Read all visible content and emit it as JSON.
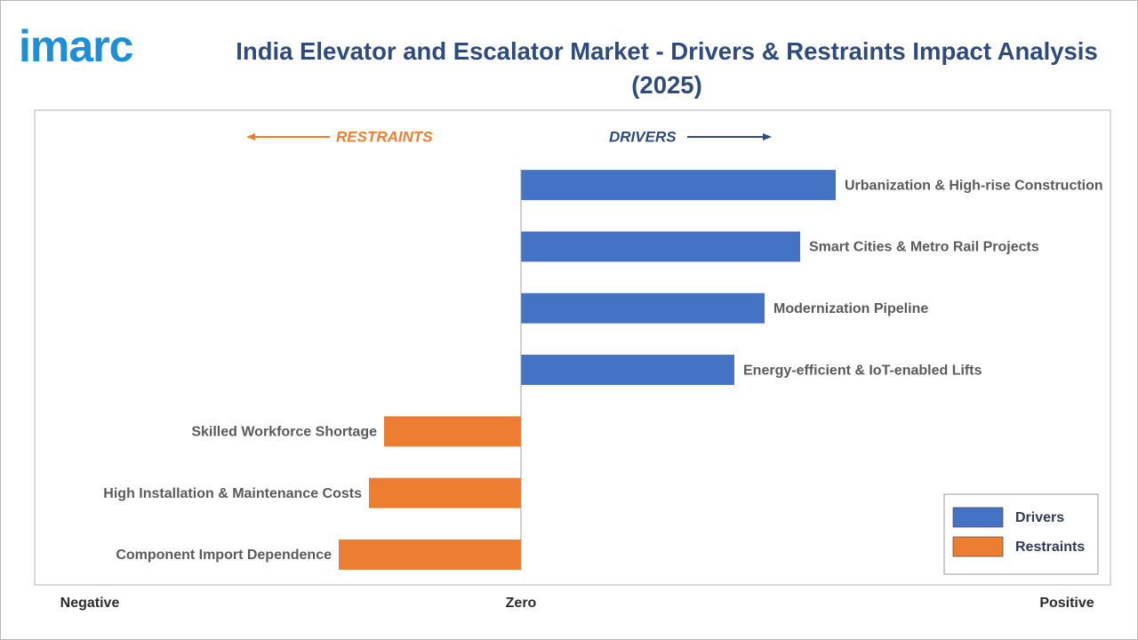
{
  "chart_data": {
    "type": "diverging_bar",
    "logo": "imarc",
    "title": "India Elevator and Escalator Market - Drivers & Restraints Impact Analysis (2025)",
    "restraints_label": "RESTRAINTS",
    "drivers_label": "DRIVERS",
    "categories": [
      "Urbanization & High-rise Construction",
      "Smart Cities & Metro Rail Projects",
      "Modernization Pipeline",
      "Energy-efficient & IoT-enabled Lifts",
      "Skilled Workforce Shortage",
      "High Installation & Maintenance Costs",
      "Component Import Dependence"
    ],
    "series": [
      {
        "name": "Drivers",
        "color": "#4472c4",
        "values": [
          3.54,
          3.14,
          2.74,
          2.4,
          null,
          null,
          null
        ]
      },
      {
        "name": "Restraints",
        "color": "#ed7d31",
        "values": [
          null,
          null,
          null,
          null,
          -1.54,
          -1.71,
          -2.05
        ]
      }
    ],
    "xlim": [
      -5.47,
      6.63
    ],
    "xticks": [
      {
        "value": -4.85,
        "label": "Negative"
      },
      {
        "value": 0,
        "label": "Zero"
      },
      {
        "value": 6.14,
        "label": "Positive"
      }
    ],
    "grid": false,
    "legend": "lower right"
  }
}
